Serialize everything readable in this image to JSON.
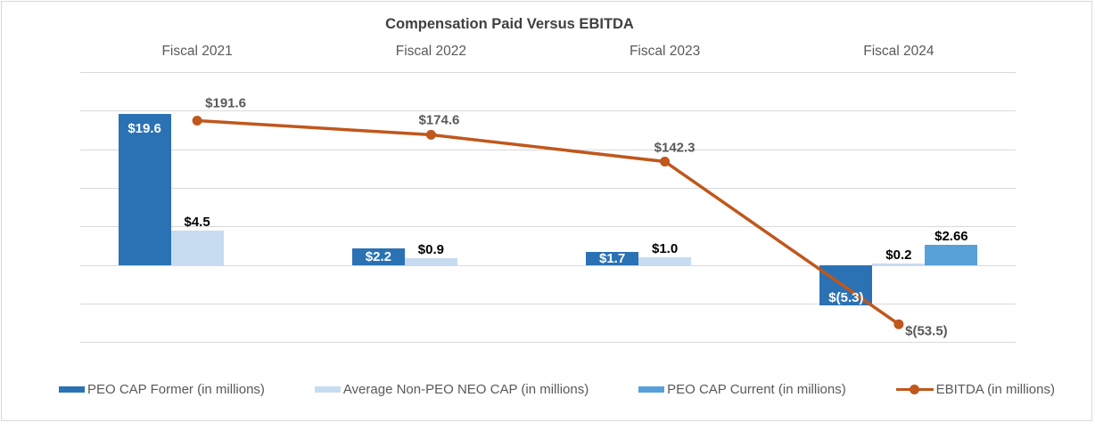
{
  "window": {
    "background": "#FFFFFF",
    "border_color": "#D9D9D9"
  },
  "chart_data": {
    "type": "combo-bar-line",
    "title": "Compensation Paid Versus EBITDA",
    "title_color": "#404040",
    "categories": [
      "Fiscal 2021",
      "Fiscal 2022",
      "Fiscal 2023",
      "Fiscal 2024"
    ],
    "category_label_color": "#595959",
    "grid": "horizontal",
    "gridline_color": "#D9D9D9",
    "legend_position": "bottom",
    "axes_tick_labels_visible": false,
    "primary_axis": {
      "min": -10,
      "max": 25,
      "step": 5
    },
    "secondary_axis": {
      "min": -75,
      "max": 250
    },
    "series": [
      {
        "name": "PEO CAP Former (in millions)",
        "type": "bar",
        "axis": "primary",
        "color": "#2B72B4",
        "values": [
          19.6,
          2.2,
          1.7,
          -5.3
        ],
        "labels": [
          "$19.6",
          "$2.2",
          "$1.7",
          "$(5.3)"
        ],
        "label_color": "#FFFFFF",
        "label_placement": "inside-end"
      },
      {
        "name": "Average Non-PEO NEO CAP (in millions)",
        "type": "bar",
        "axis": "primary",
        "color": "#C7DCF1",
        "values": [
          4.5,
          0.9,
          1.0,
          0.2
        ],
        "labels": [
          "$4.5",
          "$0.9",
          "$1.0",
          "$0.2"
        ],
        "label_color": "#000000",
        "label_placement": "outside-end"
      },
      {
        "name": "PEO CAP Current (in millions)",
        "type": "bar",
        "axis": "primary",
        "color": "#58A0D8",
        "values": [
          null,
          null,
          null,
          2.66
        ],
        "labels": [
          null,
          null,
          null,
          "$2.66"
        ],
        "label_color": "#000000",
        "label_placement": "outside-end"
      },
      {
        "name": "EBITDA (in millions)",
        "type": "line",
        "axis": "secondary",
        "color": "#C0571C",
        "values": [
          191.6,
          174.6,
          142.3,
          -53.5
        ],
        "labels": [
          "$191.6",
          "$174.6",
          "$142.3",
          "$(53.5)"
        ],
        "label_color": "#595959",
        "label_offsets": [
          {
            "dx": 32,
            "dy": -20
          },
          {
            "dx": 9,
            "dy": -16
          },
          {
            "dx": 11,
            "dy": -16
          },
          {
            "dx": 31,
            "dy": 8
          }
        ]
      }
    ]
  },
  "legend": {
    "text_color": "#595959"
  }
}
